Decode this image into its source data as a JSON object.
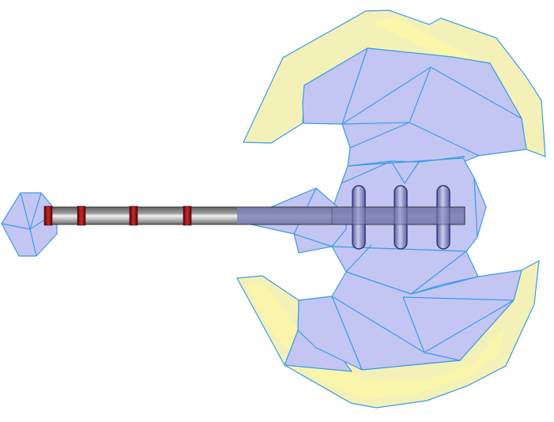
{
  "illustration": {
    "subject": "",
    "colors": {
      "blade_fill": "#c3c6f2",
      "blade_stroke": "#3a9be8",
      "edge_fill": "#f3f1b8",
      "edge_stripe": "#fbf8a6",
      "handle_dark": "#6f6f6f",
      "handle_light": "#d9d9d9",
      "band": "#8b0f0f",
      "band_shine": "#c82a2a",
      "rivet_fill": "#8f91c8",
      "rivet_stroke": "#2e3470",
      "shaft_overlay": "#7f82b8",
      "background": "#ffffff"
    }
  }
}
